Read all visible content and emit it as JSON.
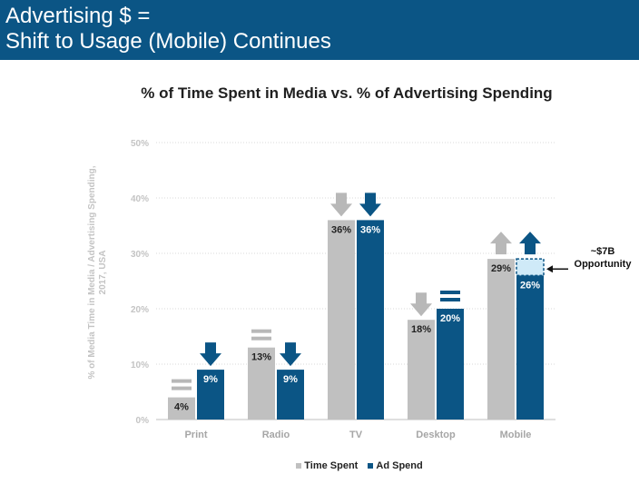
{
  "header": {
    "line1": "Advertising $ =",
    "line2": "Shift to Usage (Mobile) Continues"
  },
  "colors": {
    "header_bg": "#0b5585",
    "time_spent": "#c0c0c0",
    "ad_spend": "#0b5585",
    "arrow_gray": "#b8b8b8",
    "opportunity_fill": "#cfeaf8"
  },
  "chart_data": {
    "type": "bar",
    "title": "% of Time Spent in Media vs. % of Advertising Spending",
    "ylabel": "% of Media Time in Media / Advertising Spending, 2017, USA",
    "xlabel": "",
    "ylim": [
      0,
      50
    ],
    "yticks": [
      "0%",
      "10%",
      "20%",
      "30%",
      "40%",
      "50%"
    ],
    "categories": [
      "Print",
      "Radio",
      "TV",
      "Desktop",
      "Mobile"
    ],
    "series": [
      {
        "name": "Time Spent",
        "values": [
          4,
          13,
          36,
          18,
          29
        ],
        "labels": [
          "4%",
          "13%",
          "36%",
          "18%",
          "29%"
        ]
      },
      {
        "name": "Ad Spend",
        "values": [
          9,
          9,
          36,
          20,
          26
        ],
        "labels": [
          "9%",
          "9%",
          "36%",
          "20%",
          "26%"
        ]
      }
    ],
    "trend_markers": {
      "Time Spent": [
        "flat",
        "flat",
        "down",
        "down",
        "up"
      ],
      "Ad Spend": [
        "down",
        "down",
        "down",
        "flat",
        "up"
      ]
    },
    "annotation": {
      "amount": "~$7B",
      "text": "Opportunity",
      "category": "Mobile",
      "range": [
        26,
        29
      ]
    },
    "legend": [
      "Time Spent",
      "Ad Spend"
    ],
    "legend_position": "bottom-center"
  }
}
